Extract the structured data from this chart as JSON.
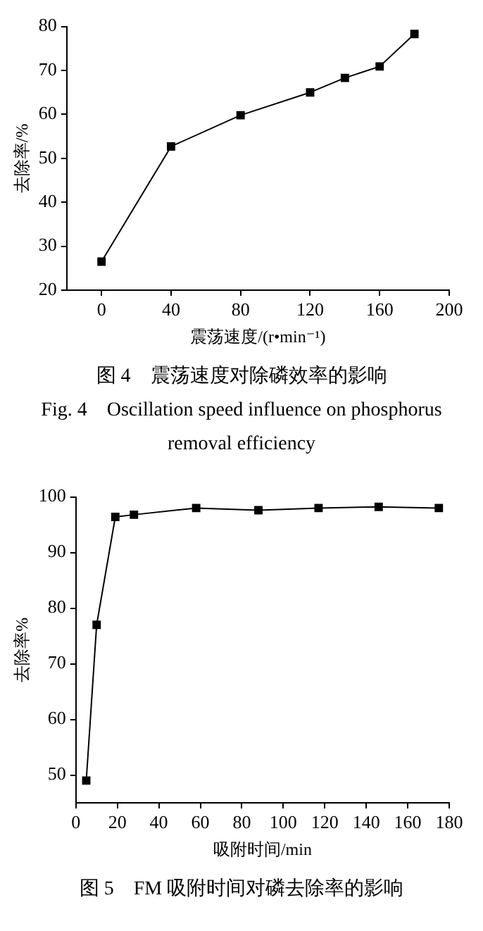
{
  "chart_data": [
    {
      "type": "line",
      "xlabel": "震荡速度/(r•min⁻¹)",
      "ylabel": "去除率/%",
      "annotations": [
        "图 4　震荡速度对除磷效率的影响",
        "Fig. 4　Oscillation speed influence on phosphorus removal efficiency"
      ],
      "x": [
        0,
        40,
        80,
        120,
        140,
        160,
        180
      ],
      "series": [
        {
          "color": "#000000",
          "values": [
            26.5,
            52.7,
            59.8,
            65,
            68.3,
            70.9,
            78.3
          ]
        }
      ],
      "xlim": [
        -20,
        200
      ],
      "xticks": [
        0,
        40,
        80,
        120,
        160,
        200
      ],
      "ylim": [
        20,
        80
      ],
      "yticks": [
        20,
        30,
        40,
        50,
        60,
        70,
        80
      ],
      "grid": false,
      "legend": false,
      "marker": "square",
      "line_style": "solid"
    },
    {
      "type": "line",
      "xlabel": "吸附时间/min",
      "ylabel": "去除率%",
      "annotations": [
        "图 5　FM 吸附时间对磷去除率的影响"
      ],
      "x": [
        5,
        10,
        19,
        28,
        58,
        88,
        117,
        146,
        175
      ],
      "series": [
        {
          "color": "#000000",
          "values": [
            49,
            77,
            96.4,
            96.8,
            98,
            97.6,
            98,
            98.2,
            98
          ]
        }
      ],
      "xlim": [
        0,
        180
      ],
      "xticks": [
        0,
        20,
        40,
        60,
        80,
        100,
        120,
        140,
        160,
        180
      ],
      "ylim": [
        45,
        100
      ],
      "yticks": [
        50,
        60,
        70,
        80,
        90,
        100
      ],
      "grid": false,
      "legend": false,
      "marker": "square",
      "line_style": "solid"
    }
  ]
}
